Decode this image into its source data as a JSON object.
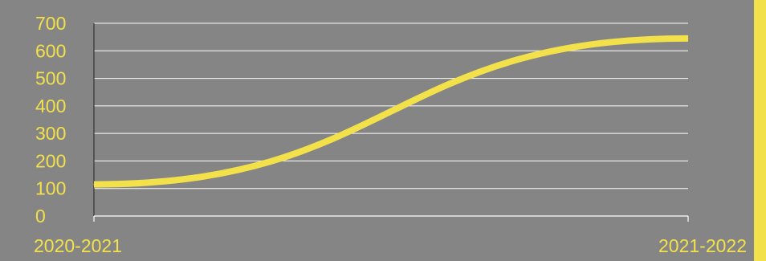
{
  "chart_data": {
    "type": "line",
    "title": "",
    "xlabel": "",
    "ylabel": "",
    "categories": [
      "2020-2021",
      "2021-2022"
    ],
    "ylim": [
      0,
      700
    ],
    "yticks": [
      0,
      100,
      200,
      300,
      400,
      500,
      600,
      700
    ],
    "grid": true,
    "smooth": true,
    "series": [
      {
        "values": [
          115,
          645
        ]
      }
    ]
  },
  "colors": {
    "background": "#858585",
    "line": "#f2e14a",
    "text": "#f2e14a",
    "grid": "#ffffff",
    "axis": "#ffffff",
    "right_bar": "#f2e14a"
  }
}
